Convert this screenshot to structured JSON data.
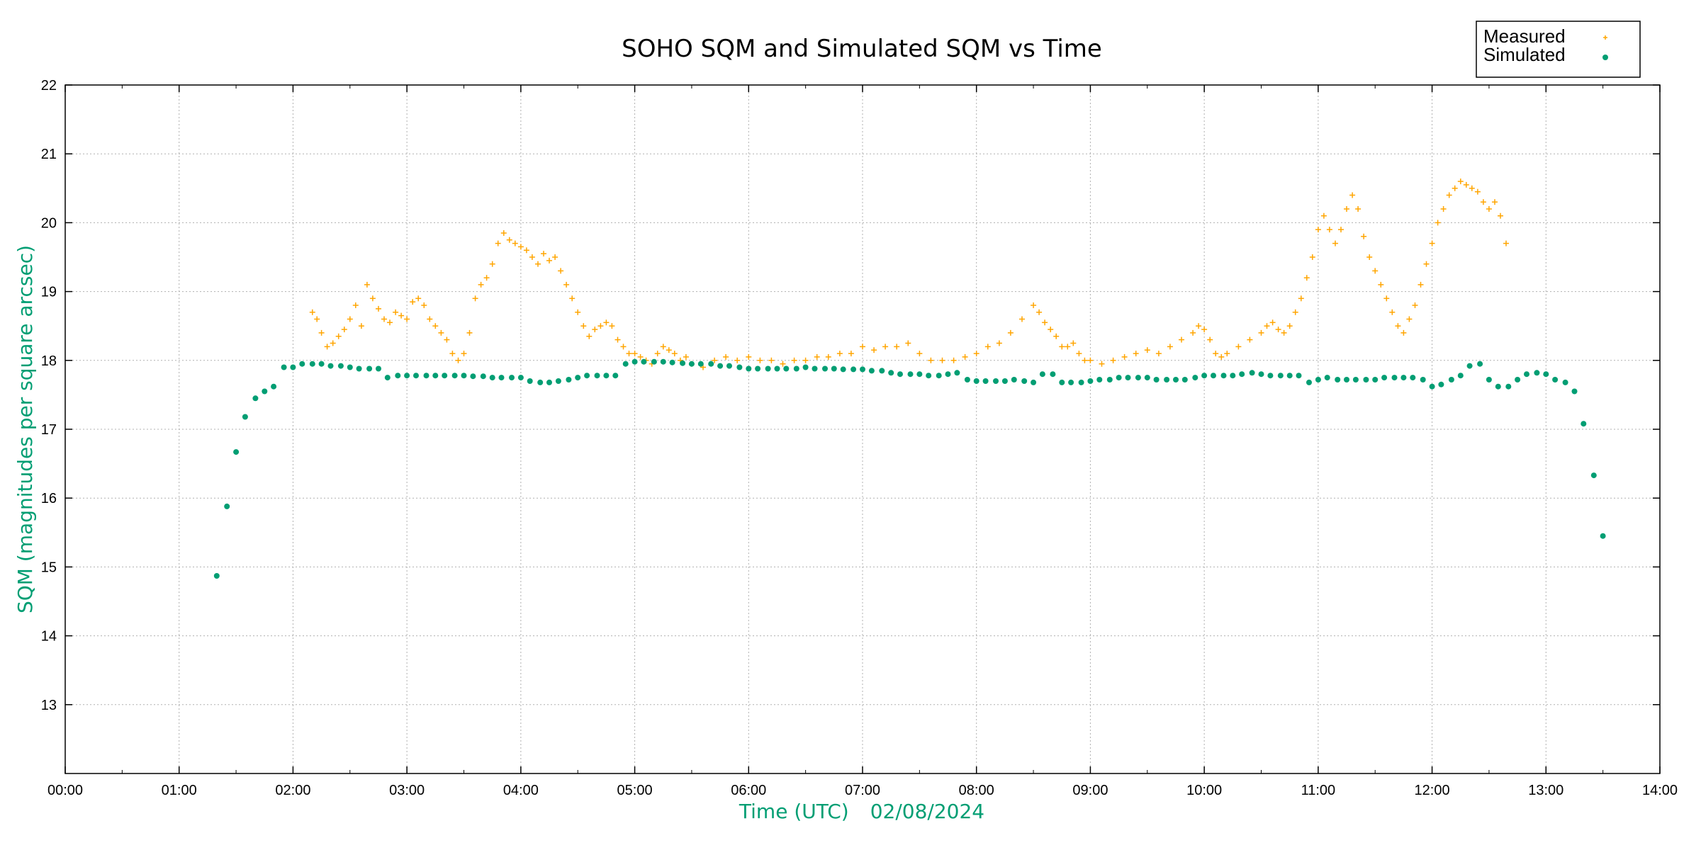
{
  "chart_data": {
    "type": "scatter",
    "title": "SOHO SQM and Simulated SQM vs Time",
    "xlabel": "Time (UTC)",
    "xlabel_date": "02/08/2024",
    "ylabel": "SQM (magnitudes per square arcsec)",
    "xlim_hours": [
      0,
      14
    ],
    "ylim": [
      12,
      22
    ],
    "x_ticks": [
      "00:00",
      "01:00",
      "02:00",
      "03:00",
      "04:00",
      "05:00",
      "06:00",
      "07:00",
      "08:00",
      "09:00",
      "10:00",
      "11:00",
      "12:00",
      "13:00",
      "14:00"
    ],
    "y_ticks": [
      13,
      14,
      15,
      16,
      17,
      18,
      19,
      20,
      21,
      22
    ],
    "grid": true,
    "legend_position": "top-right",
    "label_color": "#009e73",
    "series": [
      {
        "name": "Measured",
        "marker": "plus",
        "color": "#ffa500",
        "x_hours": [
          2.17,
          2.21,
          2.25,
          2.3,
          2.35,
          2.4,
          2.45,
          2.5,
          2.55,
          2.6,
          2.65,
          2.7,
          2.75,
          2.8,
          2.85,
          2.9,
          2.95,
          3.0,
          3.05,
          3.1,
          3.15,
          3.2,
          3.25,
          3.3,
          3.35,
          3.4,
          3.45,
          3.5,
          3.55,
          3.6,
          3.65,
          3.7,
          3.75,
          3.8,
          3.85,
          3.9,
          3.95,
          4.0,
          4.05,
          4.1,
          4.15,
          4.2,
          4.25,
          4.3,
          4.35,
          4.4,
          4.45,
          4.5,
          4.55,
          4.6,
          4.65,
          4.7,
          4.75,
          4.8,
          4.85,
          4.9,
          4.95,
          5.0,
          5.05,
          5.1,
          5.15,
          5.2,
          5.25,
          5.3,
          5.35,
          5.4,
          5.45,
          5.5,
          5.6,
          5.7,
          5.8,
          5.9,
          6.0,
          6.1,
          6.2,
          6.3,
          6.4,
          6.5,
          6.6,
          6.7,
          6.8,
          6.9,
          7.0,
          7.1,
          7.2,
          7.3,
          7.4,
          7.5,
          7.6,
          7.7,
          7.8,
          7.9,
          8.0,
          8.1,
          8.2,
          8.3,
          8.4,
          8.5,
          8.55,
          8.6,
          8.65,
          8.7,
          8.75,
          8.8,
          8.85,
          8.9,
          8.95,
          9.0,
          9.1,
          9.2,
          9.3,
          9.4,
          9.5,
          9.6,
          9.7,
          9.8,
          9.9,
          9.95,
          10.0,
          10.05,
          10.1,
          10.15,
          10.2,
          10.3,
          10.4,
          10.5,
          10.55,
          10.6,
          10.65,
          10.7,
          10.75,
          10.8,
          10.85,
          10.9,
          10.95,
          11.0,
          11.05,
          11.1,
          11.15,
          11.2,
          11.25,
          11.3,
          11.35,
          11.4,
          11.45,
          11.5,
          11.55,
          11.6,
          11.65,
          11.7,
          11.75,
          11.8,
          11.85,
          11.9,
          11.95,
          12.0,
          12.05,
          12.1,
          12.15,
          12.2,
          12.25,
          12.3,
          12.35,
          12.4,
          12.45,
          12.5,
          12.55,
          12.6,
          12.65
        ],
        "values": [
          18.7,
          18.6,
          18.4,
          18.2,
          18.25,
          18.35,
          18.45,
          18.6,
          18.8,
          18.5,
          19.1,
          18.9,
          18.75,
          18.6,
          18.55,
          18.7,
          18.65,
          18.6,
          18.85,
          18.9,
          18.8,
          18.6,
          18.5,
          18.4,
          18.3,
          18.1,
          18.0,
          18.1,
          18.4,
          18.9,
          19.1,
          19.2,
          19.4,
          19.7,
          19.85,
          19.75,
          19.7,
          19.65,
          19.6,
          19.5,
          19.4,
          19.55,
          19.45,
          19.5,
          19.3,
          19.1,
          18.9,
          18.7,
          18.5,
          18.35,
          18.45,
          18.5,
          18.55,
          18.5,
          18.3,
          18.2,
          18.1,
          18.1,
          18.05,
          18.0,
          17.95,
          18.1,
          18.2,
          18.15,
          18.1,
          18.0,
          18.05,
          17.95,
          17.9,
          18.0,
          18.05,
          18.0,
          18.05,
          18.0,
          18.0,
          17.95,
          18.0,
          18.0,
          18.05,
          18.05,
          18.1,
          18.1,
          18.2,
          18.15,
          18.2,
          18.2,
          18.25,
          18.1,
          18.0,
          18.0,
          18.0,
          18.05,
          18.1,
          18.2,
          18.25,
          18.4,
          18.6,
          18.8,
          18.7,
          18.55,
          18.45,
          18.35,
          18.2,
          18.2,
          18.25,
          18.1,
          18.0,
          18.0,
          17.95,
          18.0,
          18.05,
          18.1,
          18.15,
          18.1,
          18.2,
          18.3,
          18.4,
          18.5,
          18.45,
          18.3,
          18.1,
          18.05,
          18.1,
          18.2,
          18.3,
          18.4,
          18.5,
          18.55,
          18.45,
          18.4,
          18.5,
          18.7,
          18.9,
          19.2,
          19.5,
          19.9,
          20.1,
          19.9,
          19.7,
          19.9,
          20.2,
          20.4,
          20.2,
          19.8,
          19.5,
          19.3,
          19.1,
          18.9,
          18.7,
          18.5,
          18.4,
          18.6,
          18.8,
          19.1,
          19.4,
          19.7,
          20.0,
          20.2,
          20.4,
          20.5,
          20.6,
          20.55,
          20.5,
          20.45,
          20.3,
          20.2,
          20.3,
          20.1,
          19.7
        ]
      },
      {
        "name": "Simulated",
        "marker": "dot",
        "color": "#009e73",
        "x_hours": [
          1.33,
          1.42,
          1.5,
          1.58,
          1.67,
          1.75,
          1.83,
          1.92,
          2.0,
          2.08,
          2.17,
          2.25,
          2.33,
          2.42,
          2.5,
          2.58,
          2.67,
          2.75,
          2.83,
          2.92,
          3.0,
          3.08,
          3.17,
          3.25,
          3.33,
          3.42,
          3.5,
          3.58,
          3.67,
          3.75,
          3.83,
          3.92,
          4.0,
          4.08,
          4.17,
          4.25,
          4.33,
          4.42,
          4.5,
          4.58,
          4.67,
          4.75,
          4.83,
          4.92,
          5.0,
          5.08,
          5.17,
          5.25,
          5.33,
          5.42,
          5.5,
          5.58,
          5.67,
          5.75,
          5.83,
          5.92,
          6.0,
          6.08,
          6.17,
          6.25,
          6.33,
          6.42,
          6.5,
          6.58,
          6.67,
          6.75,
          6.83,
          6.92,
          7.0,
          7.08,
          7.17,
          7.25,
          7.33,
          7.42,
          7.5,
          7.58,
          7.67,
          7.75,
          7.83,
          7.92,
          8.0,
          8.08,
          8.17,
          8.25,
          8.33,
          8.42,
          8.5,
          8.58,
          8.67,
          8.75,
          8.83,
          8.92,
          9.0,
          9.08,
          9.17,
          9.25,
          9.33,
          9.42,
          9.5,
          9.58,
          9.67,
          9.75,
          9.83,
          9.92,
          10.0,
          10.08,
          10.17,
          10.25,
          10.33,
          10.42,
          10.5,
          10.58,
          10.67,
          10.75,
          10.83,
          10.92,
          11.0,
          11.08,
          11.17,
          11.25,
          11.33,
          11.42,
          11.5,
          11.58,
          11.67,
          11.75,
          11.83,
          11.92,
          12.0,
          12.08,
          12.17,
          12.25,
          12.33,
          12.42,
          12.5,
          12.58,
          12.67,
          12.75,
          12.83,
          12.92,
          13.0,
          13.08,
          13.17,
          13.25,
          13.33,
          13.42,
          13.5
        ],
        "values": [
          14.87,
          15.88,
          16.67,
          17.18,
          17.45,
          17.55,
          17.62,
          17.9,
          17.9,
          17.95,
          17.95,
          17.95,
          17.92,
          17.92,
          17.9,
          17.88,
          17.88,
          17.88,
          17.75,
          17.78,
          17.78,
          17.78,
          17.78,
          17.78,
          17.78,
          17.78,
          17.78,
          17.77,
          17.77,
          17.75,
          17.75,
          17.75,
          17.75,
          17.7,
          17.68,
          17.68,
          17.7,
          17.72,
          17.75,
          17.78,
          17.78,
          17.78,
          17.78,
          17.95,
          17.98,
          17.98,
          17.98,
          17.98,
          17.97,
          17.96,
          17.95,
          17.95,
          17.95,
          17.92,
          17.92,
          17.9,
          17.88,
          17.88,
          17.88,
          17.88,
          17.88,
          17.88,
          17.9,
          17.88,
          17.88,
          17.88,
          17.87,
          17.87,
          17.87,
          17.85,
          17.85,
          17.82,
          17.8,
          17.8,
          17.8,
          17.78,
          17.78,
          17.8,
          17.82,
          17.72,
          17.7,
          17.7,
          17.7,
          17.7,
          17.72,
          17.7,
          17.68,
          17.8,
          17.8,
          17.68,
          17.68,
          17.68,
          17.7,
          17.72,
          17.72,
          17.75,
          17.75,
          17.75,
          17.75,
          17.72,
          17.72,
          17.72,
          17.72,
          17.75,
          17.78,
          17.78,
          17.78,
          17.78,
          17.8,
          17.82,
          17.8,
          17.78,
          17.78,
          17.78,
          17.78,
          17.68,
          17.72,
          17.75,
          17.72,
          17.72,
          17.72,
          17.72,
          17.72,
          17.75,
          17.75,
          17.75,
          17.75,
          17.72,
          17.62,
          17.65,
          17.72,
          17.78,
          17.92,
          17.95,
          17.72,
          17.62,
          17.62,
          17.72,
          17.8,
          17.82,
          17.8,
          17.72,
          17.68,
          17.55,
          17.08,
          16.33,
          15.45
        ]
      }
    ]
  }
}
